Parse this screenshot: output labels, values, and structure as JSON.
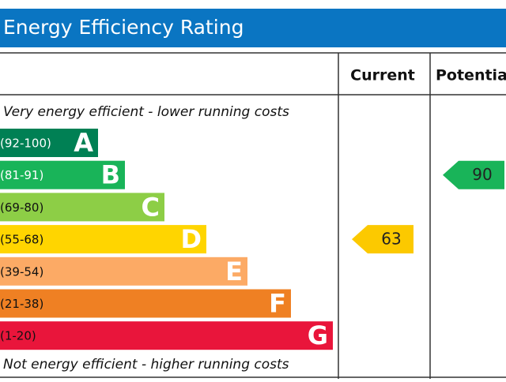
{
  "title": "Energy Efficiency Rating",
  "headers": {
    "current": "Current",
    "potential": "Potential"
  },
  "top_note": "Very energy efficient - lower running costs",
  "bottom_note": "Not energy efficient - higher running costs",
  "bands": [
    {
      "range": "(92-100)",
      "letter": "A",
      "color": "#008054"
    },
    {
      "range": "(81-91)",
      "letter": "B",
      "color": "#19b459"
    },
    {
      "range": "(69-80)",
      "letter": "C",
      "color": "#8dce46"
    },
    {
      "range": "(55-68)",
      "letter": "D",
      "color": "#ffd500"
    },
    {
      "range": "(39-54)",
      "letter": "E",
      "color": "#fcaa65"
    },
    {
      "range": "(21-38)",
      "letter": "F",
      "color": "#ef8023"
    },
    {
      "range": "(1-20)",
      "letter": "G",
      "color": "#e9153b"
    }
  ],
  "current": {
    "value": 63,
    "color": "#fcc900"
  },
  "potential": {
    "value": 90,
    "color": "#19b459"
  }
}
